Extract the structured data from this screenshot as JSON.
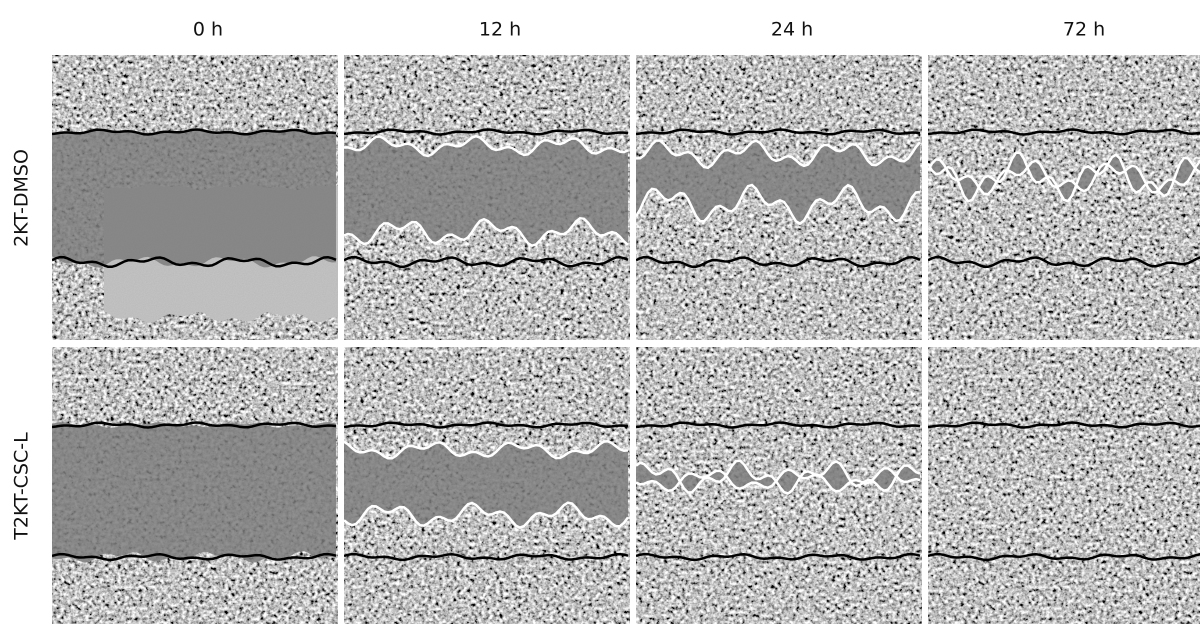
{
  "columns": [
    "0 h",
    "12 h",
    "24 h",
    "72 h"
  ],
  "rows": [
    "2KT-DMSO",
    "T2KT-CSC-L"
  ]
}
